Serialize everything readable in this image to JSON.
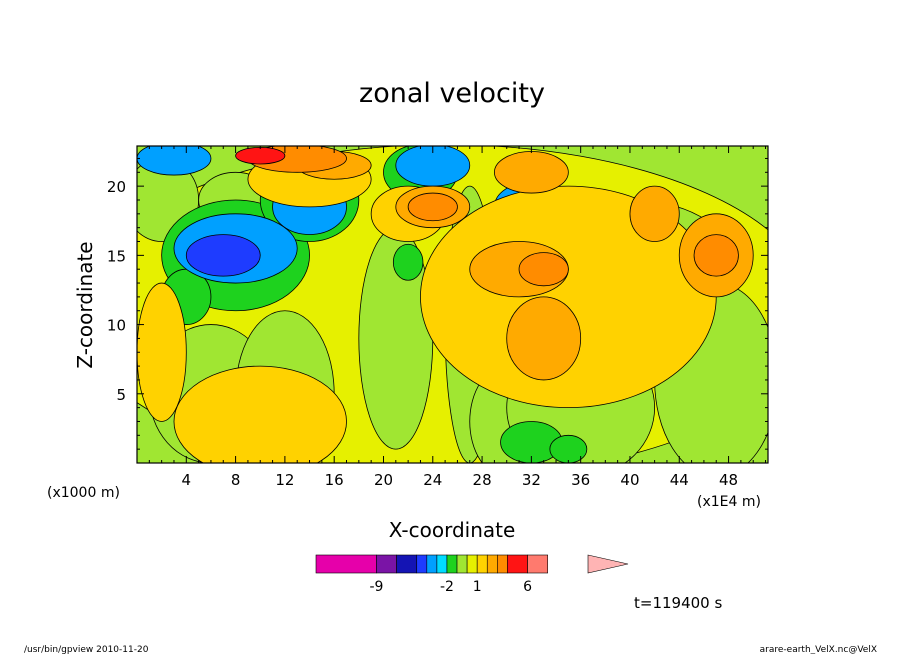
{
  "chart_data": {
    "type": "heatmap",
    "title": "zonal velocity",
    "xlabel": "X-coordinate",
    "ylabel": "Z-coordinate",
    "x_unit": "(x1E4 m)",
    "y_unit": "(x1000 m)",
    "xlim": [
      0,
      51.2
    ],
    "ylim": [
      0,
      22.9
    ],
    "x_ticks": [
      4,
      8,
      12,
      16,
      20,
      24,
      28,
      32,
      36,
      40,
      44,
      48
    ],
    "y_ticks": [
      5,
      10,
      15,
      20
    ],
    "colorbar": {
      "tick_labels": [
        "-9",
        "-2",
        "1",
        "6"
      ],
      "tick_values": [
        -9,
        -2,
        1,
        6
      ],
      "levels": [
        -15,
        -9,
        -7,
        -5,
        -4,
        -3,
        -2,
        -1,
        0,
        1,
        2,
        3,
        4,
        6,
        8,
        12
      ],
      "colors": [
        "#e600aa",
        "#7a14a6",
        "#1414b4",
        "#1e3cff",
        "#00a0ff",
        "#00dcff",
        "#1ed21e",
        "#a0e632",
        "#e6f000",
        "#ffd200",
        "#ffaa00",
        "#ff8c00",
        "#ff1414",
        "#ff7a6e",
        "#ffb4b4"
      ]
    },
    "regions": [
      {
        "level": 0,
        "cx": 25,
        "cy": 11,
        "rx": 30,
        "ry": 12
      },
      {
        "level": -1,
        "cx": 6,
        "cy": 5,
        "rx": 5,
        "ry": 5
      },
      {
        "level": -1,
        "cx": 12,
        "cy": 5,
        "rx": 4,
        "ry": 6
      },
      {
        "level": -1,
        "cx": 21,
        "cy": 9,
        "rx": 3,
        "ry": 8
      },
      {
        "level": -1,
        "cx": 27,
        "cy": 10,
        "rx": 2,
        "ry": 10
      },
      {
        "level": -1,
        "cx": 30,
        "cy": 3,
        "rx": 3,
        "ry": 4
      },
      {
        "level": -1,
        "cx": 36,
        "cy": 4,
        "rx": 6,
        "ry": 5
      },
      {
        "level": -1,
        "cx": 47,
        "cy": 6,
        "rx": 5,
        "ry": 7
      },
      {
        "level": -1,
        "cx": 40,
        "cy": 15,
        "rx": 8,
        "ry": 4
      },
      {
        "level": -1,
        "cx": 2,
        "cy": 19,
        "rx": 3,
        "ry": 3
      },
      {
        "level": -1,
        "cx": 8,
        "cy": 19,
        "rx": 3,
        "ry": 2
      },
      {
        "level": -2,
        "cx": 8,
        "cy": 15,
        "rx": 6,
        "ry": 4
      },
      {
        "level": -2,
        "cx": 14,
        "cy": 19,
        "rx": 4,
        "ry": 3
      },
      {
        "level": -2,
        "cx": 23,
        "cy": 21,
        "rx": 3,
        "ry": 2
      },
      {
        "level": -2,
        "cx": 4,
        "cy": 12,
        "rx": 2,
        "ry": 2
      },
      {
        "level": -2,
        "cx": 22,
        "cy": 14.5,
        "rx": 1.2,
        "ry": 1.3
      },
      {
        "level": -2,
        "cx": 32,
        "cy": 1.5,
        "rx": 2.5,
        "ry": 1.5
      },
      {
        "level": -2,
        "cx": 35,
        "cy": 1,
        "rx": 1.5,
        "ry": 1
      },
      {
        "level": -4,
        "cx": 8,
        "cy": 15.5,
        "rx": 5,
        "ry": 2.5
      },
      {
        "level": -4,
        "cx": 14,
        "cy": 18.5,
        "rx": 3,
        "ry": 2
      },
      {
        "level": -4,
        "cx": 24,
        "cy": 21.5,
        "rx": 3,
        "ry": 1.5
      },
      {
        "level": -4,
        "cx": 32,
        "cy": 18.5,
        "rx": 3,
        "ry": 1.8
      },
      {
        "level": -4,
        "cx": 3,
        "cy": 22,
        "rx": 3,
        "ry": 1.2
      },
      {
        "level": -5,
        "cx": 7,
        "cy": 15,
        "rx": 3,
        "ry": 1.5
      },
      {
        "level": -5,
        "cx": 31,
        "cy": 18,
        "rx": 1.2,
        "ry": 0.7
      },
      {
        "level": 1,
        "cx": 14,
        "cy": 20.5,
        "rx": 5,
        "ry": 2
      },
      {
        "level": 1,
        "cx": 22,
        "cy": 18,
        "rx": 3,
        "ry": 2
      },
      {
        "level": 1,
        "cx": 35,
        "cy": 12,
        "rx": 12,
        "ry": 8
      },
      {
        "level": 1,
        "cx": 10,
        "cy": 3,
        "rx": 7,
        "ry": 4
      },
      {
        "level": 1,
        "cx": 2,
        "cy": 8,
        "rx": 2,
        "ry": 5
      },
      {
        "level": 2,
        "cx": 24,
        "cy": 18.5,
        "rx": 3,
        "ry": 1.5
      },
      {
        "level": 2,
        "cx": 31,
        "cy": 14,
        "rx": 4,
        "ry": 2
      },
      {
        "level": 2,
        "cx": 33,
        "cy": 9,
        "rx": 3,
        "ry": 3
      },
      {
        "level": 2,
        "cx": 42,
        "cy": 18,
        "rx": 2,
        "ry": 2
      },
      {
        "level": 2,
        "cx": 47,
        "cy": 15,
        "rx": 3,
        "ry": 3
      },
      {
        "level": 2,
        "cx": 32,
        "cy": 21,
        "rx": 3,
        "ry": 1.5
      },
      {
        "level": 2,
        "cx": 16,
        "cy": 21.5,
        "rx": 3,
        "ry": 1
      },
      {
        "level": 3,
        "cx": 24,
        "cy": 18.5,
        "rx": 2,
        "ry": 1
      },
      {
        "level": 3,
        "cx": 33,
        "cy": 14,
        "rx": 2,
        "ry": 1.2
      },
      {
        "level": 3,
        "cx": 47,
        "cy": 15,
        "rx": 1.8,
        "ry": 1.5
      },
      {
        "level": 3,
        "cx": 13,
        "cy": 22,
        "rx": 4,
        "ry": 1
      },
      {
        "level": 4,
        "cx": 10,
        "cy": 22.2,
        "rx": 2,
        "ry": 0.6
      }
    ],
    "time_label": "t=119400 s"
  },
  "footer": {
    "left": "/usr/bin/gpview   2010-11-20",
    "right": "arare-earth_VelX.nc@VelX"
  }
}
